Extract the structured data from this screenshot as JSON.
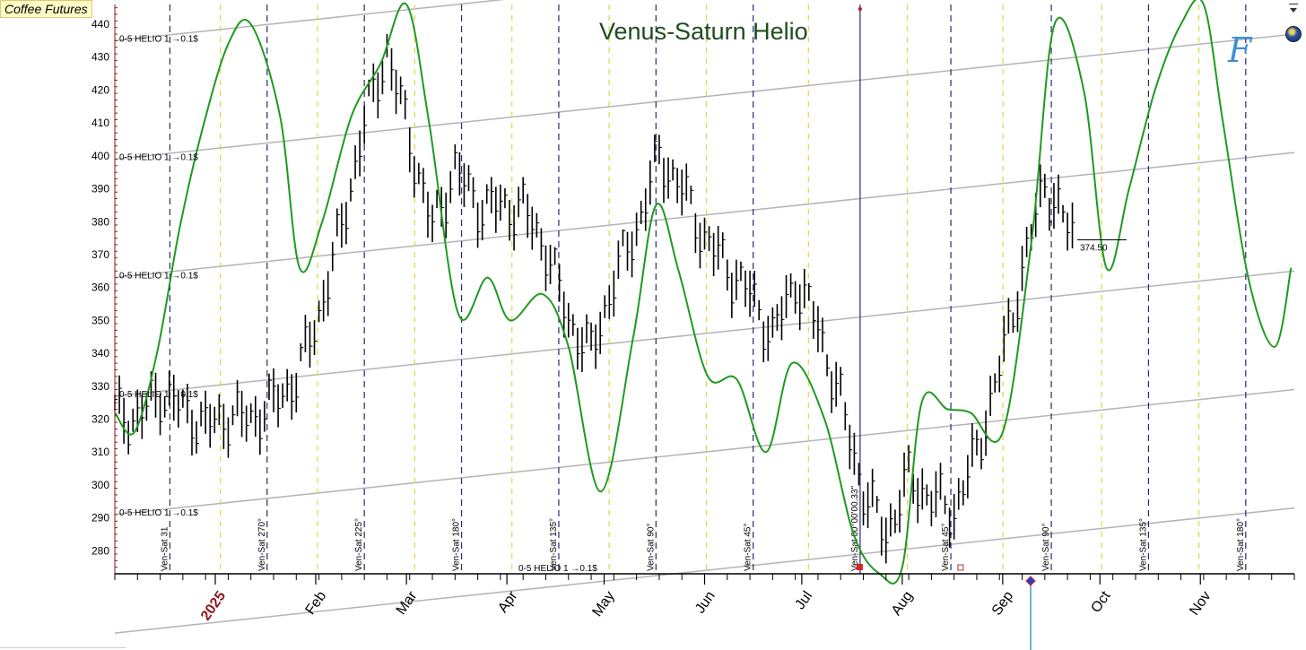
{
  "instrument": "Coffee Futures",
  "colors": {
    "bars": "#000000",
    "cycle_line": "#1f9a1f",
    "grid_lines": "#b4b4b4",
    "aspect_lines": "#28287a",
    "aspect_halfline": "#e6d24a",
    "year_label": "#8b1a1a",
    "title": "#1e4d1e"
  },
  "chart_data": {
    "type": "line",
    "title": "Venus-Saturn Helio",
    "xlabel": "",
    "ylabel": "",
    "ylim": [
      273,
      446
    ],
    "y_ticks": [
      280,
      290,
      300,
      310,
      320,
      330,
      340,
      350,
      360,
      370,
      380,
      390,
      400,
      410,
      420,
      430,
      440
    ],
    "x_date_range": [
      "2024-12-01",
      "2025-11-30"
    ],
    "month_labels": [
      {
        "date": "2025-01-01",
        "label": "2025"
      },
      {
        "date": "2025-02-01",
        "label": "Feb"
      },
      {
        "date": "2025-03-01",
        "label": "Mar"
      },
      {
        "date": "2025-04-01",
        "label": "Apr"
      },
      {
        "date": "2025-05-01",
        "label": "May"
      },
      {
        "date": "2025-06-01",
        "label": "Jun"
      },
      {
        "date": "2025-07-01",
        "label": "Jul"
      },
      {
        "date": "2025-08-01",
        "label": "Aug"
      },
      {
        "date": "2025-09-01",
        "label": "Sep"
      },
      {
        "date": "2025-10-01",
        "label": "Oct"
      },
      {
        "date": "2025-11-01",
        "label": "Nov"
      }
    ],
    "aspect_lines": [
      {
        "date": "2024-12-18",
        "label": "Ven-Sat 31"
      },
      {
        "date": "2025-01-17",
        "label": "Ven-Sat 270°"
      },
      {
        "date": "2025-02-16",
        "label": "Ven-Sat 225°"
      },
      {
        "date": "2025-03-18",
        "label": "Ven-Sat 180°"
      },
      {
        "date": "2025-04-17",
        "label": "Ven-Sat 135°"
      },
      {
        "date": "2025-05-17",
        "label": "Ven-Sat 90°"
      },
      {
        "date": "2025-06-16",
        "label": "Ven-Sat 45°"
      },
      {
        "date": "2025-07-19",
        "label": "Ven-Sat 00°00'00.33\""
      },
      {
        "date": "2025-08-16",
        "label": "Ven-Sat 45°"
      },
      {
        "date": "2025-09-16",
        "label": "Ven-Sat 90°"
      },
      {
        "date": "2025-10-16",
        "label": "Ven-Sat 135°"
      },
      {
        "date": "2025-11-15",
        "label": "Ven-Sat 180°"
      }
    ],
    "grid_lines": [
      {
        "y_start": 435,
        "y_end": 473,
        "label": "0-5 HELIO 1 →0.1$"
      },
      {
        "y_start": 399,
        "y_end": 437,
        "label": "0-5 HELIO 1 →0.1$"
      },
      {
        "y_start": 363,
        "y_end": 401,
        "label": "0-5 HELIO 1 →0.1$"
      },
      {
        "y_start": 327,
        "y_end": 365,
        "label": "0-5 HELIO 1 →0.1$"
      },
      {
        "y_start": 291,
        "y_end": 329,
        "label": "0-5 HELIO 1 →0.1$"
      },
      {
        "y_start": 255,
        "y_end": 293,
        "label": "0-5 HELIO 1 →0.1$"
      }
    ],
    "last_price": {
      "value": 374.5,
      "label": "374.50"
    },
    "series": [
      {
        "kind": "price",
        "points": [
          [
            "2024-12-01",
            322
          ],
          [
            "2024-12-08",
            320
          ],
          [
            "2024-12-15",
            328
          ],
          [
            "2024-12-22",
            323
          ],
          [
            "2024-12-29",
            318
          ],
          [
            "2025-01-05",
            321
          ],
          [
            "2025-01-12",
            320
          ],
          [
            "2025-01-19",
            325
          ],
          [
            "2025-01-26",
            332
          ],
          [
            "2025-02-02",
            352
          ],
          [
            "2025-02-09",
            378
          ],
          [
            "2025-02-16",
            410
          ],
          [
            "2025-02-23",
            432
          ],
          [
            "2025-03-02",
            405
          ],
          [
            "2025-03-09",
            378
          ],
          [
            "2025-03-16",
            396
          ],
          [
            "2025-03-23",
            385
          ],
          [
            "2025-04-06",
            384
          ],
          [
            "2025-04-13",
            372
          ],
          [
            "2025-04-20",
            350
          ],
          [
            "2025-04-27",
            340
          ],
          [
            "2025-05-04",
            362
          ],
          [
            "2025-05-11",
            378
          ],
          [
            "2025-05-18",
            400
          ],
          [
            "2025-05-25",
            390
          ],
          [
            "2025-06-01",
            375
          ],
          [
            "2025-06-08",
            366
          ],
          [
            "2025-06-15",
            358
          ],
          [
            "2025-06-22",
            345
          ],
          [
            "2025-06-29",
            362
          ],
          [
            "2025-07-06",
            348
          ],
          [
            "2025-07-13",
            325
          ],
          [
            "2025-07-20",
            298
          ],
          [
            "2025-07-27",
            285
          ],
          [
            "2025-08-03",
            302
          ],
          [
            "2025-08-10",
            296
          ],
          [
            "2025-08-17",
            292
          ],
          [
            "2025-08-24",
            310
          ],
          [
            "2025-08-31",
            335
          ],
          [
            "2025-09-07",
            365
          ],
          [
            "2025-09-14",
            392
          ],
          [
            "2025-09-21",
            378
          ],
          [
            "2025-09-24",
            374.5
          ]
        ]
      },
      {
        "kind": "cycle",
        "points": [
          [
            "2024-12-01",
            322
          ],
          [
            "2024-12-07",
            316
          ],
          [
            "2024-12-14",
            340
          ],
          [
            "2024-12-21",
            378
          ],
          [
            "2024-12-28",
            408
          ],
          [
            "2025-01-05",
            434
          ],
          [
            "2025-01-12",
            440
          ],
          [
            "2025-01-21",
            412
          ],
          [
            "2025-01-27",
            366
          ],
          [
            "2025-02-03",
            380
          ],
          [
            "2025-02-12",
            412
          ],
          [
            "2025-02-21",
            428
          ],
          [
            "2025-03-01",
            446
          ],
          [
            "2025-03-08",
            410
          ],
          [
            "2025-03-17",
            352
          ],
          [
            "2025-03-26",
            363
          ],
          [
            "2025-04-02",
            350
          ],
          [
            "2025-04-12",
            358
          ],
          [
            "2025-04-20",
            342
          ],
          [
            "2025-04-30",
            298
          ],
          [
            "2025-05-10",
            345
          ],
          [
            "2025-05-17",
            385
          ],
          [
            "2025-05-24",
            365
          ],
          [
            "2025-06-02",
            333
          ],
          [
            "2025-06-11",
            332
          ],
          [
            "2025-06-20",
            310
          ],
          [
            "2025-06-28",
            337
          ],
          [
            "2025-07-08",
            320
          ],
          [
            "2025-07-17",
            285
          ],
          [
            "2025-07-25",
            273
          ],
          [
            "2025-08-01",
            275
          ],
          [
            "2025-08-07",
            325
          ],
          [
            "2025-08-15",
            323
          ],
          [
            "2025-08-22",
            322
          ],
          [
            "2025-09-01",
            316
          ],
          [
            "2025-09-10",
            375
          ],
          [
            "2025-09-17",
            440
          ],
          [
            "2025-09-26",
            420
          ],
          [
            "2025-10-03",
            366
          ],
          [
            "2025-10-10",
            390
          ],
          [
            "2025-10-18",
            420
          ],
          [
            "2025-10-26",
            440
          ],
          [
            "2025-11-02",
            446
          ],
          [
            "2025-11-08",
            410
          ],
          [
            "2025-11-16",
            362
          ],
          [
            "2025-11-24",
            342
          ],
          [
            "2025-11-29",
            366
          ]
        ]
      }
    ]
  }
}
